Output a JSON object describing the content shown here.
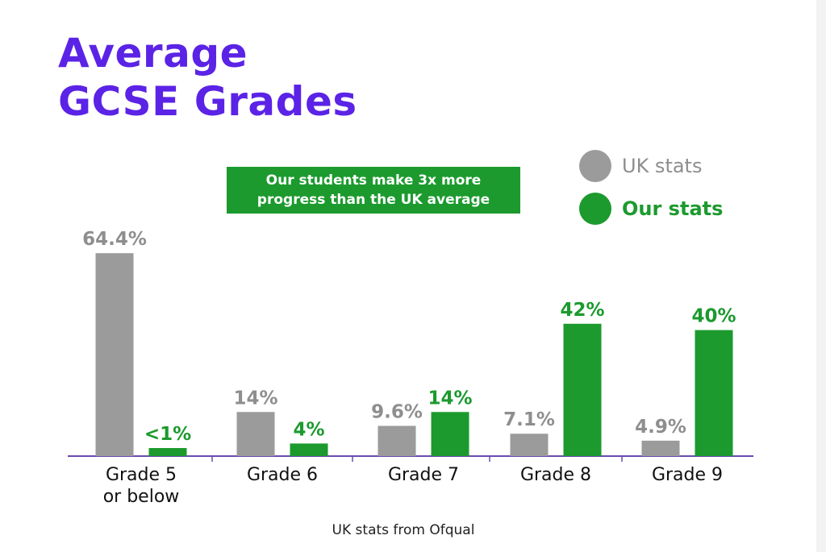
{
  "title_lines": [
    "Average",
    "GCSE Grades"
  ],
  "callout_lines": [
    "Our students make 3x more",
    "progress than the UK average"
  ],
  "legend": {
    "uk_label": "UK stats",
    "ours_label": "Our stats"
  },
  "source_note": "UK stats from Ofqual",
  "colors": {
    "title": "#5b23e6",
    "uk": "#9b9b9b",
    "ours": "#1c9a2e",
    "axis": "#6b4bb0"
  },
  "chart_data": {
    "type": "bar",
    "title": "Average GCSE Grades",
    "categories": [
      [
        "Grade 5",
        "or below"
      ],
      [
        "Grade 6"
      ],
      [
        "Grade 7"
      ],
      [
        "Grade 8"
      ],
      [
        "Grade 9"
      ]
    ],
    "series": [
      {
        "name": "UK stats",
        "values": [
          64.4,
          14,
          9.6,
          7.1,
          4.9
        ],
        "labels": [
          "64.4%",
          "14%",
          "9.6%",
          "7.1%",
          "4.9%"
        ]
      },
      {
        "name": "Our stats",
        "values": [
          1,
          4,
          14,
          42,
          40
        ],
        "labels": [
          "<1%",
          "4%",
          "14%",
          "42%",
          "40%"
        ]
      }
    ],
    "legend_position": "top-right",
    "grid": false
  }
}
